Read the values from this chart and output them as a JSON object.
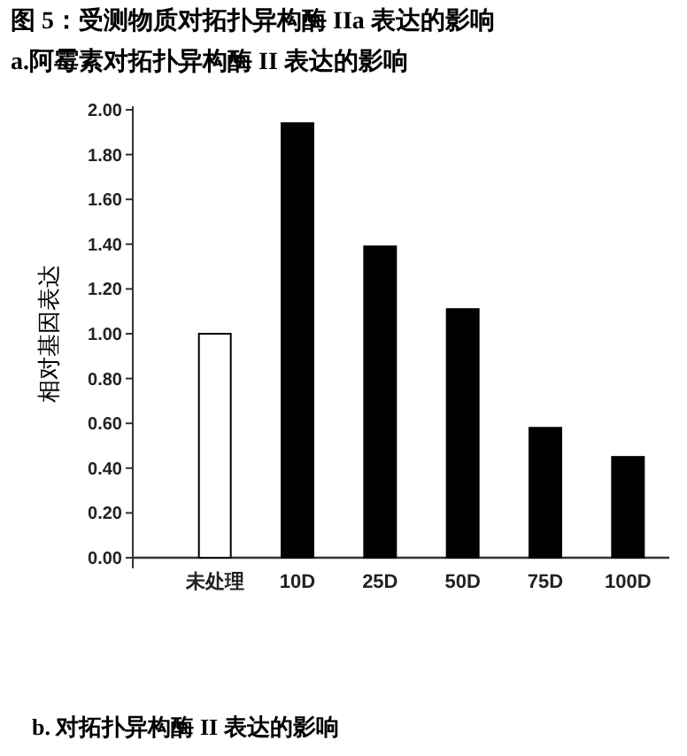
{
  "chart_data": {
    "type": "bar",
    "title": "图 5：受测物质对拓扑异构酶 IIa 表达的影响",
    "subtitle": "a.阿霉素对拓扑异构酶 II 表达的影响",
    "ylabel": "相对基因表达",
    "categories": [
      "未处理",
      "10D",
      "25D",
      "50D",
      "75D",
      "100D"
    ],
    "values": [
      1.0,
      1.94,
      1.39,
      1.11,
      0.58,
      0.45
    ],
    "colors": [
      "#ffffff",
      "#000000",
      "#000000",
      "#000000",
      "#000000",
      "#000000"
    ],
    "ylim": [
      0,
      2
    ],
    "yticks": [
      {
        "value": 0,
        "label": "0.00"
      },
      {
        "value": 0.2,
        "label": "0.20"
      },
      {
        "value": 0.4,
        "label": "0.40"
      },
      {
        "value": 0.6,
        "label": "0.60"
      },
      {
        "value": 0.8,
        "label": "0.80"
      },
      {
        "value": 1,
        "label": "1.00"
      },
      {
        "value": 1.2,
        "label": "1.20"
      },
      {
        "value": 1.4,
        "label": "1.40"
      },
      {
        "value": 1.6,
        "label": "1.60"
      },
      {
        "value": 1.8,
        "label": "1.80"
      },
      {
        "value": 2,
        "label": "2.00"
      }
    ],
    "grid": false,
    "annotations": [
      "b. 对拓扑异构酶 II 表达的影响"
    ]
  }
}
